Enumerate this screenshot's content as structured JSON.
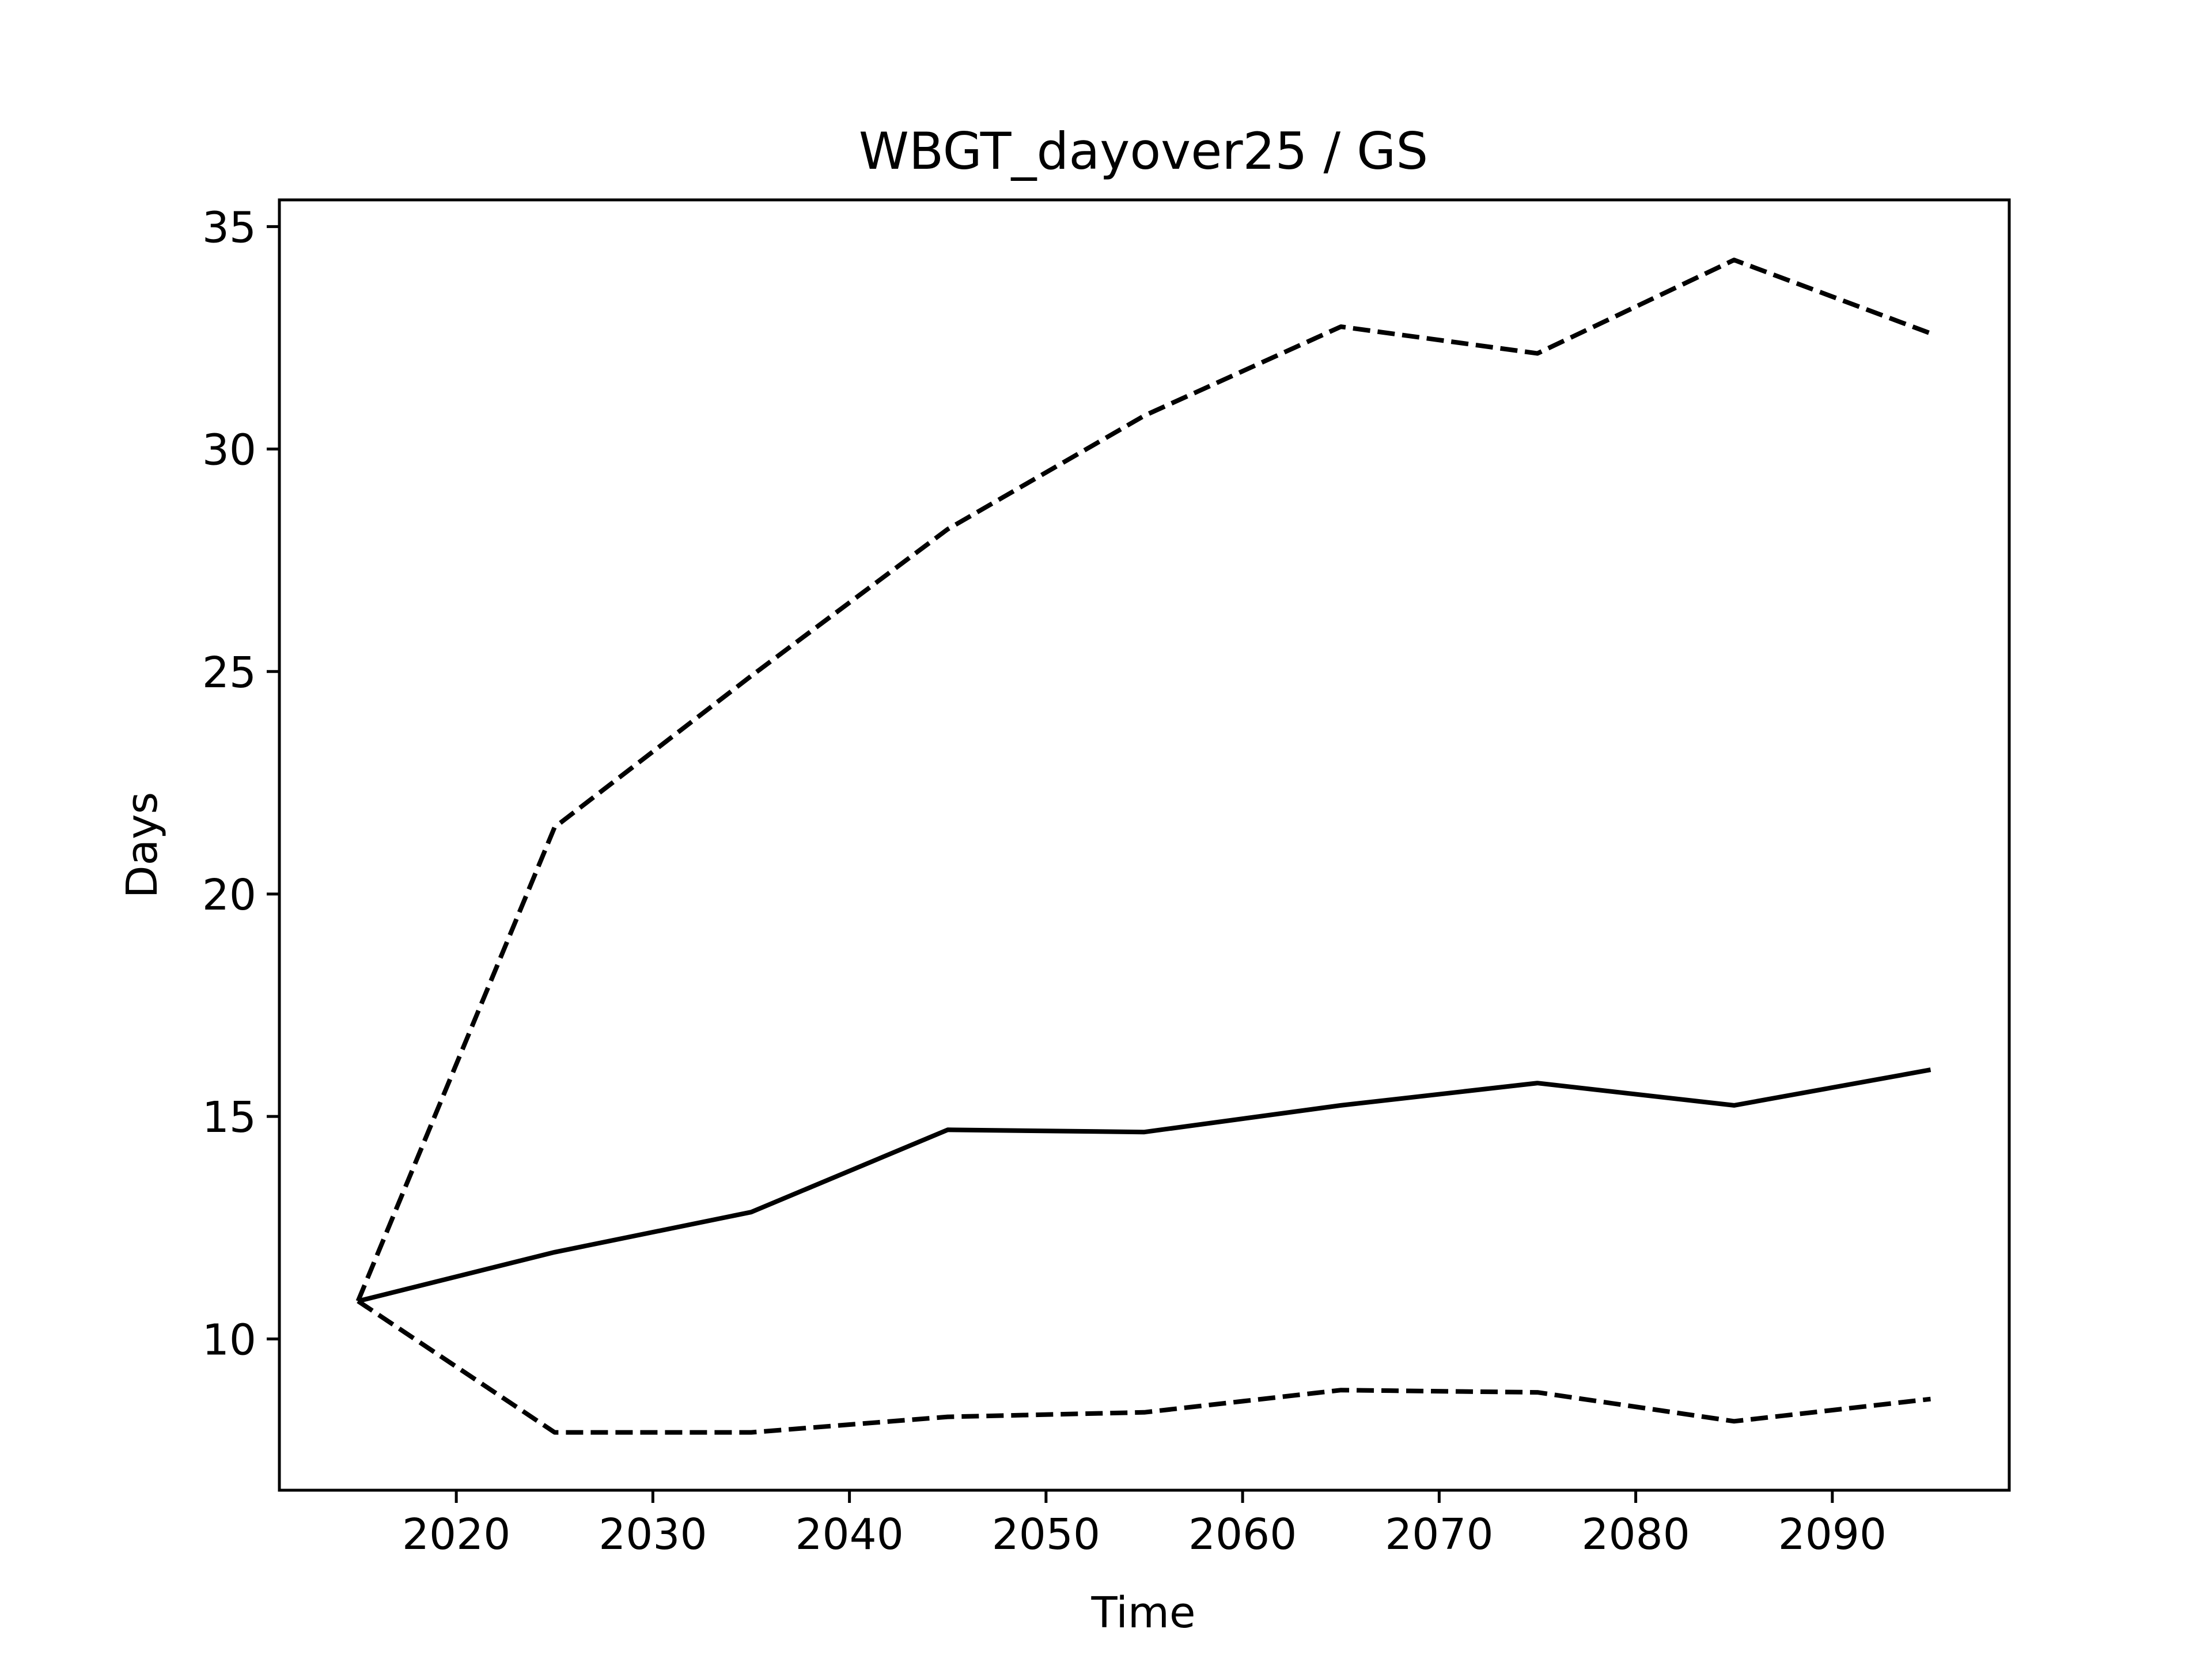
{
  "chart_data": {
    "type": "line",
    "title": "WBGT_dayover25 / GS",
    "xlabel": "Time",
    "ylabel": "Days",
    "xlim": [
      2011,
      2099
    ],
    "ylim": [
      6.6,
      35.6
    ],
    "xticks": [
      2020,
      2030,
      2040,
      2050,
      2060,
      2070,
      2080,
      2090
    ],
    "yticks": [
      10,
      15,
      20,
      25,
      30,
      35
    ],
    "grid": false,
    "x": [
      2015,
      2025,
      2035,
      2045,
      2055,
      2065,
      2075,
      2085,
      2095
    ],
    "series": [
      {
        "style": "dashed",
        "values": [
          10.85,
          21.5,
          24.9,
          28.2,
          30.75,
          32.75,
          32.15,
          34.25,
          32.6
        ]
      },
      {
        "style": "solid",
        "values": [
          10.85,
          11.95,
          12.85,
          14.7,
          14.65,
          15.25,
          15.75,
          15.25,
          16.05
        ]
      },
      {
        "style": "dashed",
        "values": [
          10.85,
          7.9,
          7.9,
          8.25,
          8.35,
          8.85,
          8.8,
          8.15,
          8.65
        ]
      }
    ]
  }
}
